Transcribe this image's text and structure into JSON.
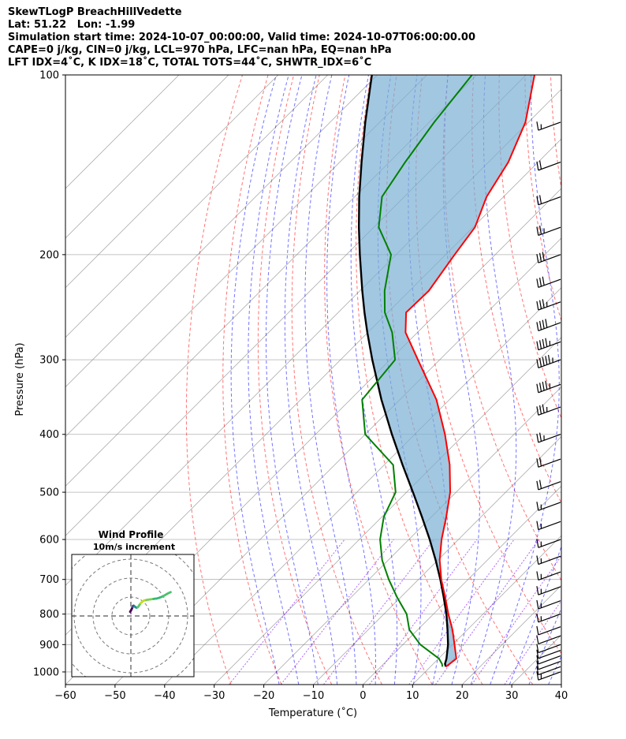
{
  "header": {
    "line1": "SkewTLogP BreachHillVedette",
    "line2": "Lat: 51.22   Lon: -1.99",
    "line3": "Simulation start time: 2024-10-07_00:00:00, Valid time: 2024-10-07T06:00:00.00",
    "line4": "CAPE=0 j/kg, CIN=0 j/kg, LCL=970 hPa, LFC=nan hPa, EQ=nan hPa",
    "line5": "LFT IDX=4˚C, K IDX=18˚C, TOTAL TOTS=44˚C, SHWTR_IDX=6˚C"
  },
  "chart_data": [
    {
      "type": "line",
      "xlabel": "Temperature (˚C)",
      "ylabel": "Pressure (hPa)",
      "xlim": [
        -60,
        40
      ],
      "ylim": [
        1050,
        100
      ],
      "y_scale": "log",
      "x_skewed": true,
      "xticks": [
        -60,
        -50,
        -40,
        -30,
        -20,
        -10,
        0,
        10,
        20,
        30,
        40
      ],
      "xtick_labels": [
        "−60",
        "−50",
        "−40",
        "−30",
        "−20",
        "−10",
        "0",
        "10",
        "20",
        "30",
        "40"
      ],
      "yticks": [
        1000,
        900,
        800,
        700,
        600,
        500,
        400,
        300,
        200,
        100
      ],
      "ytick_labels": [
        "1000",
        "900",
        "800",
        "700",
        "600",
        "500",
        "400",
        "300",
        "200",
        "100"
      ],
      "grid": true,
      "colors": {
        "temperature": "#ff0000",
        "dewpoint": "#008000",
        "parcel": "#000000",
        "cape_fill": "#7bafd4",
        "dry_adiabat": "#ff0000",
        "moist_adiabat": "#0000ff",
        "mixing_ratio": "#8000ff",
        "isotherm": "#808080"
      },
      "series": [
        {
          "p": [
            980,
            970,
            950,
            900,
            850,
            800,
            750,
            700,
            650,
            600,
            550,
            500,
            450,
            400,
            350,
            300,
            270,
            250,
            230,
            200,
            180,
            160,
            140,
            120,
            100
          ],
          "values": [
            13.1,
            13.3,
            13.6,
            10.4,
            7.0,
            3.0,
            -1.0,
            -5.4,
            -9.6,
            -13.4,
            -17.0,
            -21.2,
            -26.8,
            -33.9,
            -42.6,
            -54.4,
            -62.4,
            -66.3,
            -66.1,
            -68.2,
            -69.6,
            -73.4,
            -76.0,
            -80.6,
            -88.3
          ]
        },
        {
          "p": [
            980,
            970,
            950,
            900,
            850,
            800,
            750,
            700,
            650,
            600,
            550,
            500,
            450,
            400,
            350,
            300,
            270,
            250,
            230,
            200,
            180,
            160,
            140,
            120,
            100
          ],
          "values": [
            12.4,
            11.8,
            10.1,
            3.5,
            -1.7,
            -5.4,
            -10.7,
            -16.0,
            -21.2,
            -25.8,
            -29.6,
            -32.2,
            -38.2,
            -50.0,
            -57.6,
            -59.0,
            -65.1,
            -70.6,
            -75.0,
            -81.0,
            -89.0,
            -94.5,
            -96.8,
            -99.0,
            -100.9
          ]
        },
        {
          "p": [
            980,
            970,
            950,
            900,
            850,
            800,
            750,
            700,
            650,
            600,
            550,
            500,
            450,
            400,
            350,
            300,
            270,
            250,
            230,
            200,
            180,
            160,
            140,
            120,
            100
          ],
          "values": [
            13.1,
            12.4,
            11.6,
            9.1,
            6.0,
            2.6,
            -1.3,
            -5.6,
            -10.4,
            -15.8,
            -21.9,
            -28.7,
            -36.3,
            -44.6,
            -53.7,
            -63.6,
            -70.1,
            -74.7,
            -79.5,
            -87.3,
            -93.0,
            -99.1,
            -105.6,
            -112.9,
            -121.1
          ]
        }
      ],
      "wind_barbs": {
        "p": [
          1000,
          980,
          960,
          940,
          920,
          900,
          870,
          840,
          800,
          760,
          720,
          680,
          640,
          600,
          560,
          520,
          480,
          440,
          400,
          360,
          330,
          300,
          280,
          260,
          240,
          220,
          200,
          180,
          160,
          140,
          120
        ],
        "speed_kt": [
          15,
          10,
          10,
          10,
          10,
          10,
          10,
          10,
          15,
          15,
          15,
          15,
          15,
          15,
          15,
          15,
          20,
          20,
          25,
          35,
          45,
          55,
          45,
          40,
          35,
          30,
          30,
          25,
          20,
          20,
          15
        ],
        "direction_deg": [
          250,
          250,
          250,
          250,
          250,
          250,
          250,
          250,
          250,
          250,
          250,
          250,
          250,
          250,
          250,
          250,
          250,
          250,
          250,
          250,
          250,
          250,
          250,
          250,
          250,
          250,
          250,
          250,
          250,
          250,
          250
        ]
      }
    },
    {
      "type": "scatter",
      "title": "Wind Profile",
      "subtitle": "10m/s increment",
      "hodograph_u": [
        -0.4,
        0.1,
        0.6,
        0.9,
        1.1,
        1.5,
        2.0,
        2.5,
        3.0,
        3.6,
        4.0,
        4.5,
        5.2,
        6.0,
        7.0,
        8.0,
        9.0,
        10.5,
        12.0,
        13.5,
        15.0,
        17.0,
        19.0,
        21.0
      ],
      "hodograph_v": [
        2.2,
        3.0,
        4.0,
        4.8,
        5.3,
        5.4,
        5.0,
        4.6,
        4.4,
        4.6,
        5.0,
        5.8,
        6.8,
        7.5,
        8.2,
        8.4,
        8.6,
        8.8,
        9.0,
        9.2,
        9.6,
        10.4,
        11.6,
        12.6
      ]
    }
  ]
}
